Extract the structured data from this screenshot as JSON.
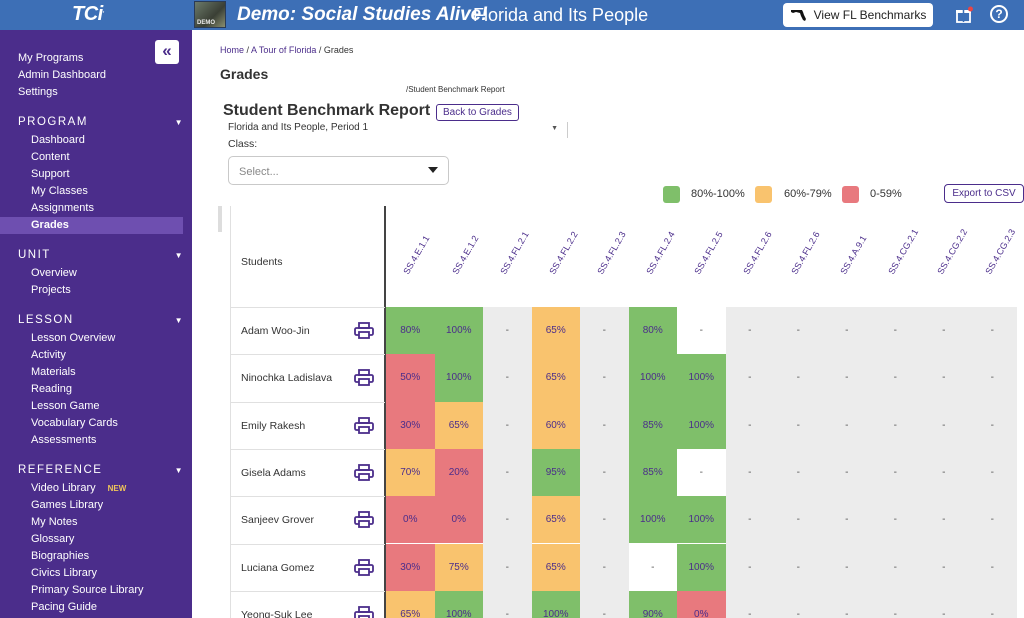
{
  "topbar": {
    "logo": "TCi",
    "demo_badge": "DEMO",
    "program_title": "Demo: Social Studies Alive!",
    "program_subtitle": "Florida and Its People",
    "benchmarks_button": "View FL Benchmarks",
    "help_glyph": "?"
  },
  "sidebar": {
    "collapse_glyph": "«",
    "top_links": [
      "My Programs",
      "Admin Dashboard",
      "Settings"
    ],
    "sections": [
      {
        "title": "PROGRAM",
        "items": [
          "Dashboard",
          "Content",
          "Support",
          "My Classes",
          "Assignments",
          "Grades"
        ]
      },
      {
        "title": "UNIT",
        "items": [
          "Overview",
          "Projects"
        ]
      },
      {
        "title": "LESSON",
        "items": [
          "Lesson Overview",
          "Activity",
          "Materials",
          "Reading",
          "Lesson Game",
          "Vocabulary Cards",
          "Assessments"
        ]
      },
      {
        "title": "REFERENCE",
        "items": [
          "Video Library",
          "Games Library",
          "My Notes",
          "Glossary",
          "Biographies",
          "Civics Library",
          "Primary Source Library",
          "Pacing Guide"
        ]
      }
    ],
    "active_item": "Grades",
    "new_badge": "NEW"
  },
  "breadcrumb": {
    "home": "Home",
    "sep1": " / ",
    "tour": "A Tour of Florida",
    "sep2": " / ",
    "current": "Grades"
  },
  "page_title": "Grades",
  "sub_path": "/Student Benchmark Report",
  "report_title": "Student Benchmark Report",
  "back_button": "Back to Grades",
  "period_select": "Florida and Its People, Period 1",
  "class_label": "Class:",
  "class_select_placeholder": "Select...",
  "legend": [
    {
      "label": "80%-100%",
      "color": "#7fbf6a"
    },
    {
      "label": "60%-79%",
      "color": "#f9c36e"
    },
    {
      "label": "0-59%",
      "color": "#e8797e"
    }
  ],
  "export_button": "Export to CSV",
  "table": {
    "students_header": "Students",
    "columns": [
      "SS.4.E.1.1",
      "SS.4.E.1.2",
      "SS.4.FL.2.1",
      "SS.4.FL.2.2",
      "SS.4.FL.2.3",
      "SS.4.FL.2.4",
      "SS.4.FL.2.5",
      "SS.4.FL.2.6",
      "SS.4.FL.2.6",
      "SS.4.A.9.1",
      "SS.4.CG.2.1",
      "SS.4.CG.2.2",
      "SS.4.CG.2.3"
    ],
    "rows": [
      {
        "student": "Adam Woo-Jin",
        "cells": [
          "80%",
          "100%",
          "-",
          "65%",
          "-",
          "80%",
          "-",
          "-",
          "-",
          "-",
          "-",
          "-",
          "-"
        ]
      },
      {
        "student": "Ninochka Ladislava",
        "cells": [
          "50%",
          "100%",
          "-",
          "65%",
          "-",
          "100%",
          "100%",
          "-",
          "-",
          "-",
          "-",
          "-",
          "-"
        ]
      },
      {
        "student": "Emily Rakesh",
        "cells": [
          "30%",
          "65%",
          "-",
          "60%",
          "-",
          "85%",
          "100%",
          "-",
          "-",
          "-",
          "-",
          "-",
          "-"
        ]
      },
      {
        "student": "Gisela Adams",
        "cells": [
          "70%",
          "20%",
          "-",
          "95%",
          "-",
          "85%",
          "-",
          "-",
          "-",
          "-",
          "-",
          "-",
          "-"
        ]
      },
      {
        "student": "Sanjeev Grover",
        "cells": [
          "0%",
          "0%",
          "-",
          "65%",
          "-",
          "100%",
          "100%",
          "-",
          "-",
          "-",
          "-",
          "-",
          "-"
        ]
      },
      {
        "student": "Luciana Gomez",
        "cells": [
          "30%",
          "75%",
          "-",
          "65%",
          "-",
          "-",
          "100%",
          "-",
          "-",
          "-",
          "-",
          "-",
          "-"
        ]
      },
      {
        "student": "Yeong-Suk Lee",
        "cells": [
          "65%",
          "100%",
          "-",
          "100%",
          "-",
          "90%",
          "0%",
          "-",
          "-",
          "-",
          "-",
          "-",
          "-"
        ]
      }
    ],
    "colors": {
      "green": "#7fbf6a",
      "yellow": "#f9c36e",
      "red": "#e8797e",
      "gray": "#ececec",
      "empty": "#ffffff"
    }
  }
}
